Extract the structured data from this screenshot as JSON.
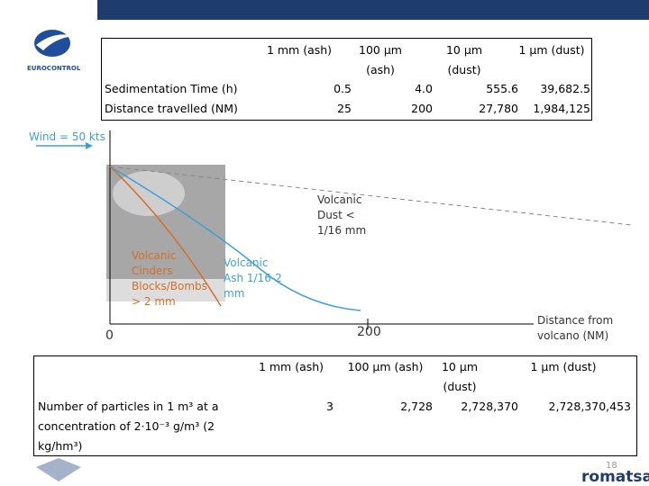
{
  "header": {
    "logo": "EUROCONTROL"
  },
  "table_top": {
    "columns": [
      "1 mm (ash)",
      "100 µm (ash)",
      "10 µm (dust)",
      "1 µm (dust)"
    ],
    "rows": [
      [
        "Sedimentation Time (h)",
        "0.5",
        "4.0",
        "555.6",
        "39,682.5"
      ],
      [
        "Distance travelled (NM)",
        "25",
        "200",
        "27,780",
        "1,984,125"
      ]
    ]
  },
  "diagram": {
    "wind": "Wind = 50 kts",
    "dust_label": "Volcanic Dust < 1/16 mm",
    "ash_label": "Volcanic Ash 1/16-2 mm",
    "cinders_label": "Volcanic Cinders Blocks/Bombs > 2 mm",
    "origin": "0",
    "mark": "200",
    "axis_label": "Distance from volcano (NM)"
  },
  "table_bottom": {
    "columns": [
      "1 mm (ash)",
      "100 µm (ash)",
      "10 µm (dust)",
      "1 µm (dust)"
    ],
    "rows": [
      [
        "Number of particles in 1 m³ at a concentration of 2·10⁻³ g/m³ (2 kg/hm³)",
        "3",
        "2,728",
        "2,728,370",
        "2,728,370,453"
      ]
    ]
  },
  "footer": {
    "page": "18",
    "brand": "romatsa"
  }
}
